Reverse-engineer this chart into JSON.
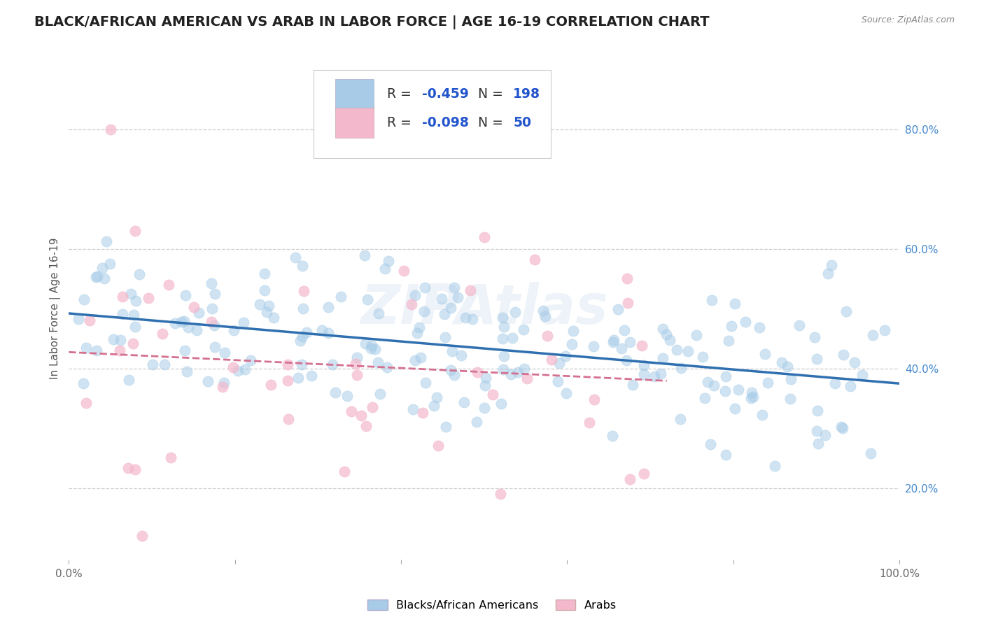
{
  "title": "BLACK/AFRICAN AMERICAN VS ARAB IN LABOR FORCE | AGE 16-19 CORRELATION CHART",
  "source": "Source: ZipAtlas.com",
  "ylabel": "In Labor Force | Age 16-19",
  "xlim": [
    0.0,
    1.0
  ],
  "ylim": [
    0.08,
    0.92
  ],
  "xticks": [
    0.0,
    0.2,
    0.4,
    0.6,
    0.8,
    1.0
  ],
  "xtick_labels": [
    "0.0%",
    "",
    "",
    "",
    "",
    "100.0%"
  ],
  "yticks": [
    0.2,
    0.4,
    0.6,
    0.8
  ],
  "ytick_labels": [
    "20.0%",
    "40.0%",
    "60.0%",
    "80.0%"
  ],
  "legend_labels": [
    "Blacks/African Americans",
    "Arabs"
  ],
  "R_blue": -0.459,
  "N_blue": 198,
  "R_pink": -0.098,
  "N_pink": 50,
  "blue_scatter_color": "#a8cce8",
  "pink_scatter_color": "#f4b8cc",
  "blue_line_color": "#3070b0",
  "pink_line_color": "#d47090",
  "watermark": "ZIPAtlas",
  "background_color": "#ffffff",
  "grid_color": "#cccccc",
  "title_color": "#222222",
  "legend_R_color": "#2255cc",
  "legend_N_color": "#2255cc",
  "legend_text_color": "#333333"
}
